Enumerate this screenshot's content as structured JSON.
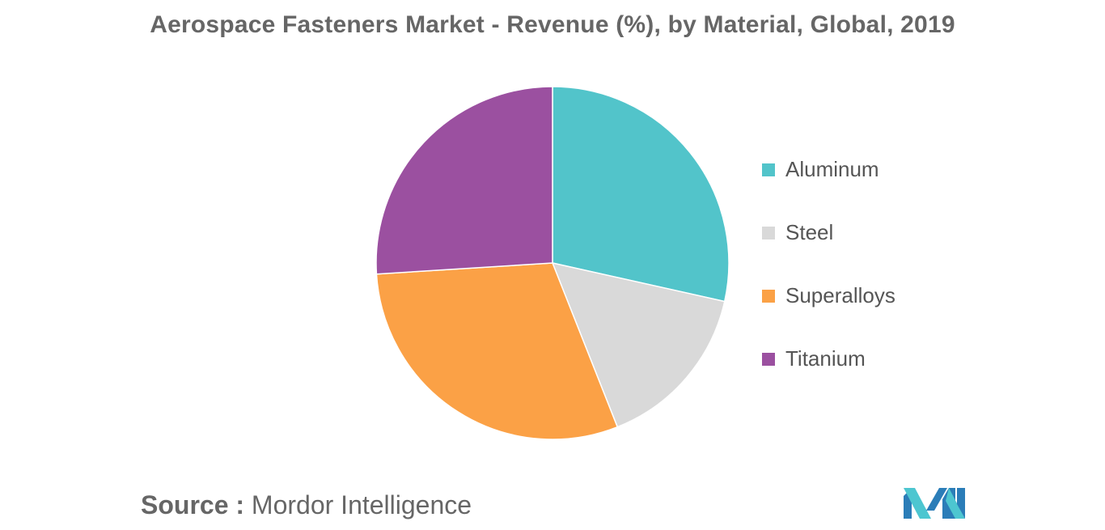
{
  "chart_data": {
    "type": "pie",
    "title": "Aerospace Fasteners Market - Revenue (%), by Material, Global, 2019",
    "categories": [
      "Aluminum",
      "Steel",
      "Superalloys",
      "Titanium"
    ],
    "values": [
      28.5,
      15.5,
      30.0,
      26.0
    ],
    "colors": [
      "#52C4CA",
      "#D9D9D9",
      "#FBA146",
      "#9B50A0"
    ],
    "legend_position": "right",
    "start_angle": "top (12 o'clock)",
    "direction": "clockwise"
  },
  "source": {
    "label": "Source :",
    "text": "Mordor Intelligence"
  },
  "logo": {
    "name": "mordor-intelligence-logo",
    "colors": [
      "#2B7DB8",
      "#4DC6D0"
    ]
  }
}
